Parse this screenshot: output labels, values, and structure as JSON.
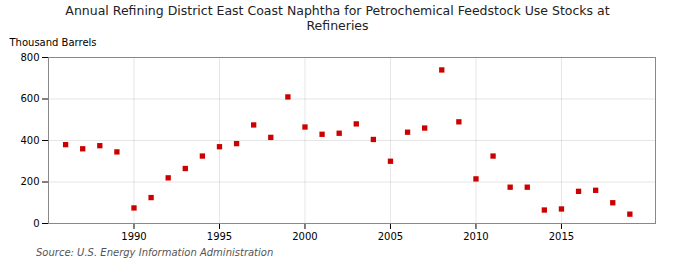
{
  "chart_data": {
    "type": "scatter",
    "title": "Annual Refining District East Coast Naphtha for Petrochemical Feedstock Use Stocks at\nRefineries",
    "ylabel": "Thousand Barrels",
    "source": "Source: U.S. Energy Information Administration",
    "x": [
      1986,
      1987,
      1988,
      1989,
      1990,
      1991,
      1992,
      1993,
      1994,
      1995,
      1996,
      1997,
      1998,
      1999,
      2000,
      2001,
      2002,
      2003,
      2004,
      2005,
      2006,
      2007,
      2008,
      2009,
      2010,
      2011,
      2012,
      2013,
      2014,
      2015,
      2016,
      2017,
      2018,
      2019
    ],
    "values": [
      380,
      360,
      375,
      345,
      75,
      125,
      220,
      265,
      325,
      370,
      385,
      475,
      415,
      610,
      465,
      430,
      435,
      480,
      405,
      300,
      440,
      460,
      740,
      490,
      215,
      325,
      175,
      175,
      65,
      70,
      155,
      160,
      100,
      45
    ],
    "color": "#cc0000",
    "marker": "square",
    "xlim": [
      1985.0,
      2020.5
    ],
    "xticks": [
      1990,
      1995,
      2000,
      2005,
      2010,
      2015
    ],
    "ylim": [
      0,
      800
    ],
    "yticks": [
      0,
      200,
      400,
      600,
      800
    ],
    "grid": true
  }
}
